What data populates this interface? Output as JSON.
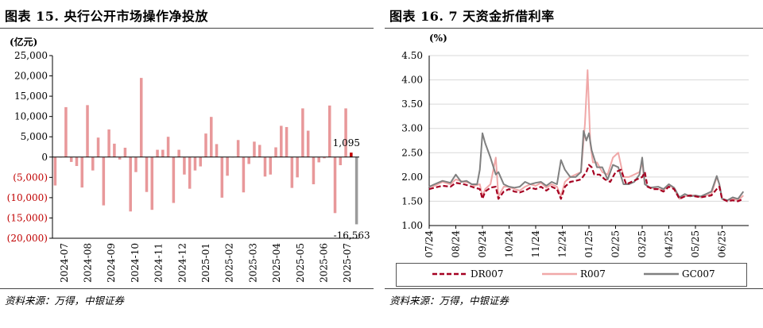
{
  "left": {
    "title": "图表 15. 央行公开市场操作净投放",
    "source": "资料来源：万得，中银证券",
    "chart_data": {
      "type": "bar",
      "unit_label": "(亿元)",
      "ylim": [
        -20000,
        25000
      ],
      "yticks": [
        25000,
        20000,
        15000,
        10000,
        5000,
        0,
        -5000,
        -10000,
        -15000,
        -20000
      ],
      "ytick_labels": [
        "25,000",
        "20,000",
        "15,000",
        "10,000",
        "5,000",
        "0",
        "(5,000)",
        "(10,000)",
        "(15,000)",
        "(20,000)"
      ],
      "xtick_labels": [
        "2024-07",
        "2024-08",
        "2024-09",
        "2024-10",
        "2024-11",
        "2024-12",
        "2025-01",
        "2025-02",
        "2025-03",
        "2025-04",
        "2025-05",
        "2025-06",
        "2025-07"
      ],
      "values": [
        -7000,
        0,
        12300,
        -1200,
        -2200,
        -7500,
        12800,
        -3300,
        4800,
        -11900,
        6800,
        3300,
        -600,
        2300,
        -13400,
        -3700,
        19500,
        -8600,
        -13000,
        1800,
        1800,
        5000,
        -11300,
        1800,
        -4300,
        -7800,
        -3300,
        -2300,
        5800,
        9900,
        3200,
        -10000,
        -4600,
        0,
        4200,
        -8700,
        -1700,
        3800,
        3000,
        -4800,
        -4300,
        2400,
        7700,
        7400,
        -7600,
        -5000,
        12000,
        6500,
        -6700,
        -1300,
        -300,
        12700,
        -13800,
        -2000,
        12000,
        1095,
        -16563
      ],
      "highlight_colors": {
        "55": "#c00000",
        "56": "#9b9b9b"
      },
      "bar_color": "#e8989a",
      "annotations": [
        {
          "index": 55,
          "text": "1,095"
        },
        {
          "index": 56,
          "text": "-16,563"
        }
      ]
    }
  },
  "right": {
    "title": "图表 16. 7 天资金折借利率",
    "source": "资料来源：万得，中银证券",
    "chart_data": {
      "type": "line",
      "unit_label": "(%)",
      "ylim": [
        1.0,
        4.5
      ],
      "yticks": [
        1.0,
        1.5,
        2.0,
        2.5,
        3.0,
        3.5,
        4.0,
        4.5
      ],
      "ytick_labels": [
        "1.00",
        "1.50",
        "2.00",
        "2.50",
        "3.00",
        "3.50",
        "4.00",
        "4.50"
      ],
      "xtick_labels": [
        "07/24",
        "08/24",
        "09/24",
        "10/24",
        "11/24",
        "12/24",
        "01/25",
        "02/25",
        "03/25",
        "04/25",
        "05/25",
        "06/25"
      ],
      "xlim": [
        0,
        12
      ],
      "series": [
        {
          "name": "DR007",
          "color": "#a50021",
          "dash": "6,3",
          "points": [
            [
              0.0,
              1.75
            ],
            [
              0.2,
              1.78
            ],
            [
              0.5,
              1.82
            ],
            [
              0.8,
              1.8
            ],
            [
              1.0,
              1.88
            ],
            [
              1.3,
              1.85
            ],
            [
              1.5,
              1.82
            ],
            [
              1.7,
              1.78
            ],
            [
              1.9,
              1.75
            ],
            [
              2.0,
              1.55
            ],
            [
              2.1,
              1.7
            ],
            [
              2.3,
              1.78
            ],
            [
              2.5,
              1.8
            ],
            [
              2.6,
              1.55
            ],
            [
              2.8,
              1.7
            ],
            [
              3.0,
              1.75
            ],
            [
              3.2,
              1.7
            ],
            [
              3.4,
              1.68
            ],
            [
              3.6,
              1.72
            ],
            [
              3.8,
              1.78
            ],
            [
              4.0,
              1.75
            ],
            [
              4.2,
              1.8
            ],
            [
              4.4,
              1.72
            ],
            [
              4.6,
              1.8
            ],
            [
              4.8,
              1.75
            ],
            [
              4.95,
              1.55
            ],
            [
              5.1,
              1.8
            ],
            [
              5.3,
              1.9
            ],
            [
              5.5,
              1.92
            ],
            [
              5.7,
              1.95
            ],
            [
              5.9,
              2.1
            ],
            [
              6.0,
              2.25
            ],
            [
              6.1,
              2.2
            ],
            [
              6.2,
              2.05
            ],
            [
              6.4,
              2.05
            ],
            [
              6.6,
              1.95
            ],
            [
              6.8,
              1.9
            ],
            [
              7.0,
              2.1
            ],
            [
              7.2,
              2.15
            ],
            [
              7.4,
              1.85
            ],
            [
              7.6,
              1.9
            ],
            [
              7.8,
              1.95
            ],
            [
              8.0,
              2.0
            ],
            [
              8.1,
              2.1
            ],
            [
              8.2,
              1.8
            ],
            [
              8.4,
              1.75
            ],
            [
              8.6,
              1.75
            ],
            [
              8.8,
              1.7
            ],
            [
              9.0,
              1.8
            ],
            [
              9.2,
              1.75
            ],
            [
              9.4,
              1.55
            ],
            [
              9.6,
              1.6
            ],
            [
              9.8,
              1.62
            ],
            [
              10.0,
              1.6
            ],
            [
              10.2,
              1.58
            ],
            [
              10.4,
              1.6
            ],
            [
              10.6,
              1.62
            ],
            [
              10.8,
              1.75
            ],
            [
              10.9,
              1.8
            ],
            [
              11.0,
              1.55
            ],
            [
              11.2,
              1.5
            ],
            [
              11.4,
              1.52
            ],
            [
              11.6,
              1.5
            ],
            [
              11.8,
              1.55
            ]
          ]
        },
        {
          "name": "R007",
          "color": "#f0a8a8",
          "dash": "",
          "points": [
            [
              0.0,
              1.8
            ],
            [
              0.2,
              1.82
            ],
            [
              0.5,
              1.9
            ],
            [
              0.8,
              1.85
            ],
            [
              1.0,
              1.95
            ],
            [
              1.3,
              1.9
            ],
            [
              1.5,
              1.88
            ],
            [
              1.7,
              1.82
            ],
            [
              1.9,
              1.85
            ],
            [
              2.0,
              1.6
            ],
            [
              2.1,
              1.75
            ],
            [
              2.3,
              1.85
            ],
            [
              2.5,
              2.4
            ],
            [
              2.6,
              1.6
            ],
            [
              2.8,
              1.8
            ],
            [
              3.0,
              1.8
            ],
            [
              3.2,
              1.75
            ],
            [
              3.4,
              1.72
            ],
            [
              3.6,
              1.8
            ],
            [
              3.8,
              1.85
            ],
            [
              4.0,
              1.82
            ],
            [
              4.2,
              1.88
            ],
            [
              4.4,
              1.78
            ],
            [
              4.6,
              1.85
            ],
            [
              4.8,
              1.8
            ],
            [
              4.95,
              1.6
            ],
            [
              5.1,
              1.9
            ],
            [
              5.3,
              2.0
            ],
            [
              5.5,
              2.05
            ],
            [
              5.7,
              2.1
            ],
            [
              5.85,
              3.1
            ],
            [
              5.95,
              4.2
            ],
            [
              6.05,
              2.7
            ],
            [
              6.15,
              2.3
            ],
            [
              6.3,
              2.3
            ],
            [
              6.5,
              2.1
            ],
            [
              6.7,
              2.05
            ],
            [
              6.9,
              2.4
            ],
            [
              7.1,
              2.5
            ],
            [
              7.3,
              2.0
            ],
            [
              7.5,
              2.0
            ],
            [
              7.7,
              2.05
            ],
            [
              7.9,
              2.1
            ],
            [
              8.0,
              2.3
            ],
            [
              8.1,
              1.85
            ],
            [
              8.3,
              1.78
            ],
            [
              8.6,
              1.75
            ],
            [
              8.8,
              1.72
            ],
            [
              9.0,
              1.85
            ],
            [
              9.2,
              1.75
            ],
            [
              9.4,
              1.55
            ],
            [
              9.6,
              1.6
            ],
            [
              9.8,
              1.62
            ],
            [
              10.0,
              1.62
            ],
            [
              10.2,
              1.58
            ],
            [
              10.4,
              1.62
            ],
            [
              10.6,
              1.65
            ],
            [
              10.8,
              2.0
            ],
            [
              10.9,
              1.85
            ],
            [
              11.0,
              1.55
            ],
            [
              11.2,
              1.52
            ],
            [
              11.4,
              1.55
            ],
            [
              11.6,
              1.52
            ],
            [
              11.8,
              1.62
            ]
          ]
        },
        {
          "name": "GC007",
          "color": "#808080",
          "dash": "",
          "points": [
            [
              0.0,
              1.8
            ],
            [
              0.2,
              1.85
            ],
            [
              0.5,
              1.92
            ],
            [
              0.8,
              1.88
            ],
            [
              1.0,
              2.05
            ],
            [
              1.2,
              1.9
            ],
            [
              1.4,
              1.92
            ],
            [
              1.6,
              1.85
            ],
            [
              1.8,
              1.85
            ],
            [
              1.9,
              2.15
            ],
            [
              2.0,
              2.9
            ],
            [
              2.1,
              2.7
            ],
            [
              2.3,
              2.4
            ],
            [
              2.5,
              2.05
            ],
            [
              2.6,
              2.1
            ],
            [
              2.8,
              1.85
            ],
            [
              3.0,
              1.8
            ],
            [
              3.2,
              1.78
            ],
            [
              3.4,
              1.8
            ],
            [
              3.6,
              1.9
            ],
            [
              3.8,
              1.85
            ],
            [
              4.0,
              1.88
            ],
            [
              4.2,
              1.9
            ],
            [
              4.4,
              1.82
            ],
            [
              4.6,
              1.9
            ],
            [
              4.8,
              1.85
            ],
            [
              4.95,
              2.35
            ],
            [
              5.1,
              2.15
            ],
            [
              5.3,
              2.0
            ],
            [
              5.5,
              2.0
            ],
            [
              5.7,
              2.1
            ],
            [
              5.8,
              2.95
            ],
            [
              5.9,
              2.75
            ],
            [
              6.0,
              2.9
            ],
            [
              6.1,
              2.55
            ],
            [
              6.3,
              2.2
            ],
            [
              6.5,
              2.2
            ],
            [
              6.7,
              1.95
            ],
            [
              6.9,
              2.25
            ],
            [
              7.1,
              2.2
            ],
            [
              7.3,
              1.85
            ],
            [
              7.5,
              1.85
            ],
            [
              7.7,
              1.9
            ],
            [
              7.9,
              2.05
            ],
            [
              8.0,
              2.4
            ],
            [
              8.1,
              1.85
            ],
            [
              8.3,
              1.78
            ],
            [
              8.6,
              1.8
            ],
            [
              8.8,
              1.75
            ],
            [
              9.0,
              1.85
            ],
            [
              9.2,
              1.78
            ],
            [
              9.4,
              1.58
            ],
            [
              9.6,
              1.65
            ],
            [
              9.8,
              1.6
            ],
            [
              10.0,
              1.62
            ],
            [
              10.2,
              1.6
            ],
            [
              10.4,
              1.65
            ],
            [
              10.6,
              1.7
            ],
            [
              10.8,
              2.02
            ],
            [
              10.9,
              1.85
            ],
            [
              11.0,
              1.55
            ],
            [
              11.2,
              1.52
            ],
            [
              11.4,
              1.58
            ],
            [
              11.6,
              1.55
            ],
            [
              11.8,
              1.7
            ]
          ]
        }
      ],
      "legend": [
        "DR007",
        "R007",
        "GC007"
      ],
      "legend_position": "bottom"
    }
  }
}
